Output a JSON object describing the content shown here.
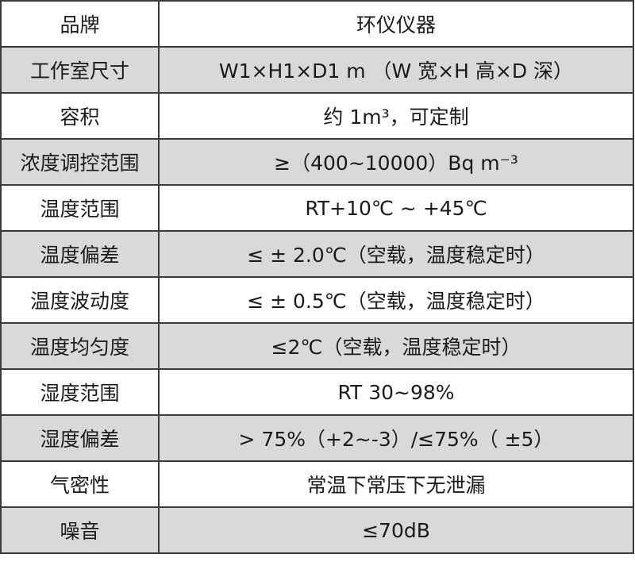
{
  "rows": [
    {
      "label": "品牌",
      "value": "环仪仪器"
    },
    {
      "label": "工作室尺寸",
      "value": "W1×H1×D1 m （W 宽×H 高×D 深）"
    },
    {
      "label": "容积",
      "value": "约 1m³，可定制"
    },
    {
      "label": "浓度调控范围",
      "value": "≥（400~10000）Bq m⁻³"
    },
    {
      "label": "温度范围",
      "value": "RT+10℃ ~ +45℃"
    },
    {
      "label": "温度偏差",
      "value": "≤ ± 2.0℃（空载，温度稳定时）"
    },
    {
      "label": "温度波动度",
      "value": "≤ ± 0.5℃（空载，温度稳定时）"
    },
    {
      "label": "温度均匀度",
      "value": "≤2℃（空载，温度稳定时）"
    },
    {
      "label": "湿度范围",
      "value": "RT 30~98%"
    },
    {
      "label": "湿度偏差",
      "value": "> 75%（+2~-3）/≤75%（ ±5）"
    },
    {
      "label": "气密性",
      "value": "常温下常压下无泄漏"
    },
    {
      "label": "噪音",
      "value": "≤70dB"
    }
  ],
  "colors": {
    "alt_row": "#d9d9d9",
    "border": "#3a3a3a"
  }
}
